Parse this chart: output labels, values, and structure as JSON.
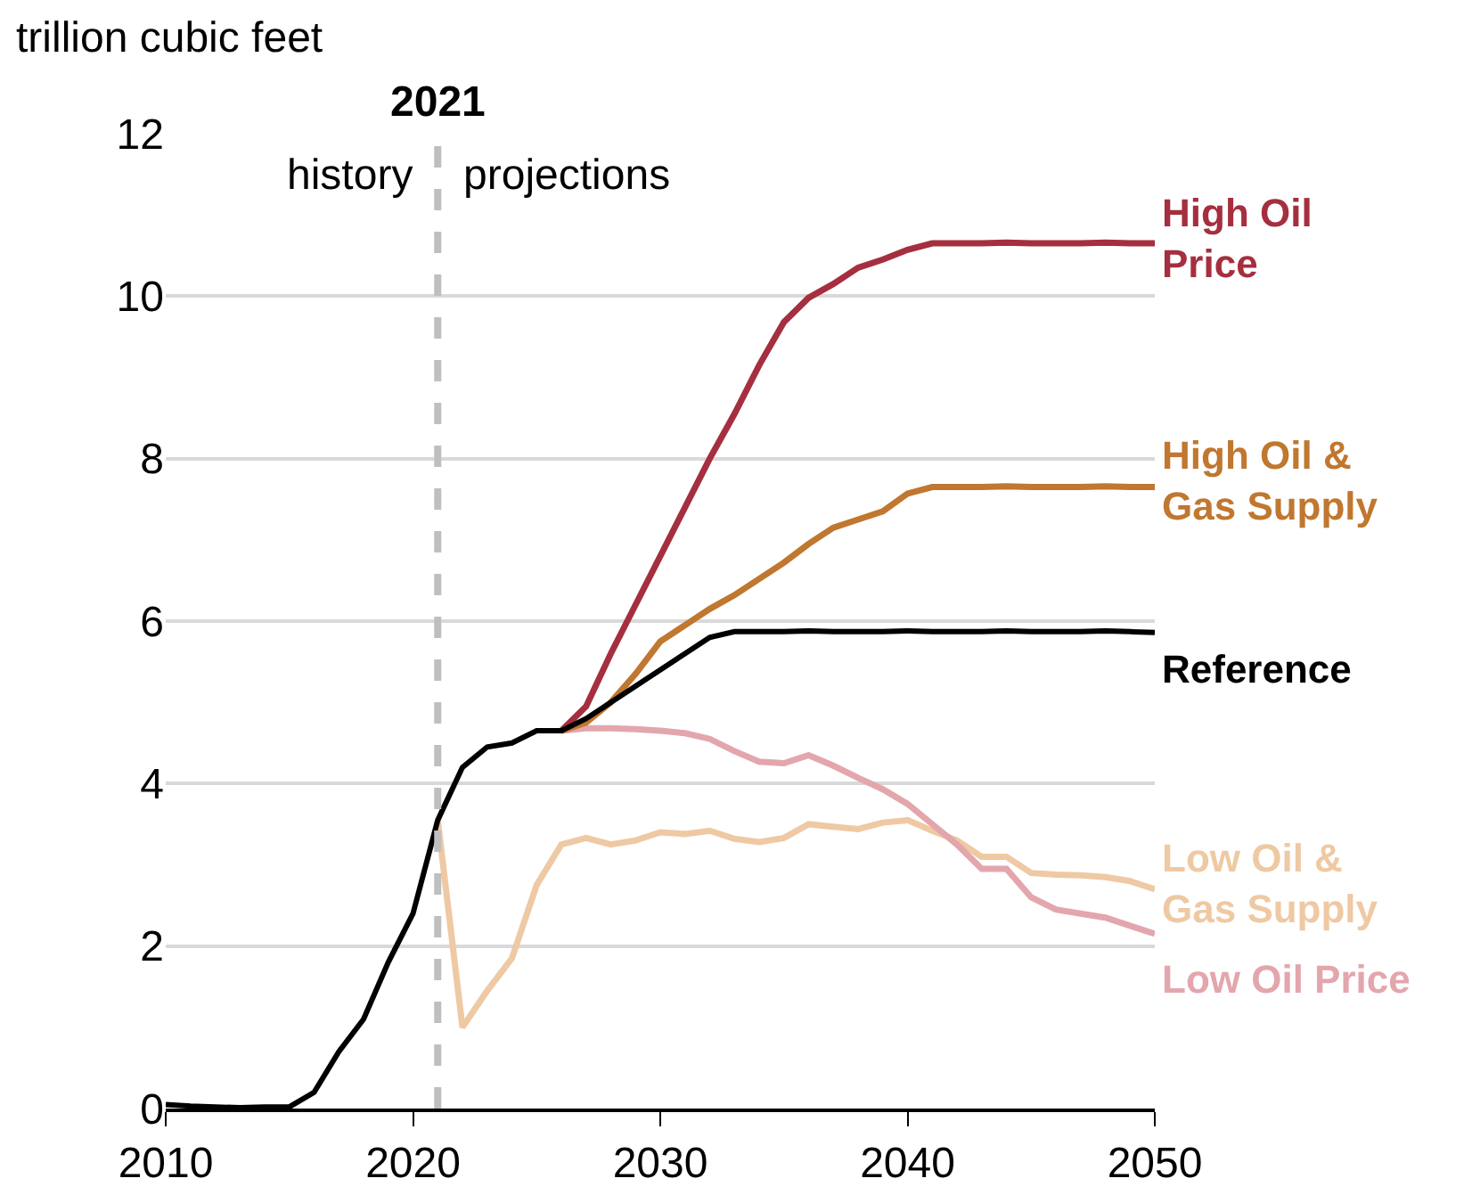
{
  "chart_data": {
    "type": "line",
    "ylabel": "trillion cubic feet",
    "xlim": [
      2010,
      2050
    ],
    "xticks": [
      2010,
      2020,
      2030,
      2040,
      2050
    ],
    "ylim": [
      0,
      12
    ],
    "yticks": [
      0,
      2,
      4,
      6,
      8,
      10,
      12
    ],
    "grid": "y",
    "legend": false,
    "line_style": "solid",
    "marker": "none",
    "ref_lines": [
      {
        "axis": "x",
        "value": 2021,
        "label": "2021",
        "color": "#bfbfbf",
        "line_style": "dashed"
      }
    ],
    "annotations": [
      "history",
      "projections"
    ],
    "series": [
      {
        "name": "Low Oil & Gas Supply",
        "color": "#eec9a3",
        "x": [
          2021,
          2022,
          2023,
          2024,
          2025,
          2026,
          2027,
          2028,
          2029,
          2030,
          2031,
          2032,
          2033,
          2034,
          2035,
          2036,
          2037,
          2038,
          2039,
          2040,
          2041,
          2042,
          2043,
          2044,
          2045,
          2046,
          2047,
          2048,
          2049,
          2050
        ],
        "values": [
          3.55,
          1.0,
          1.45,
          1.85,
          2.75,
          3.25,
          3.33,
          3.25,
          3.3,
          3.4,
          3.38,
          3.42,
          3.32,
          3.28,
          3.33,
          3.5,
          3.47,
          3.44,
          3.52,
          3.55,
          3.42,
          3.3,
          3.1,
          3.1,
          2.9,
          2.88,
          2.87,
          2.85,
          2.8,
          2.7
        ]
      },
      {
        "name": "Low Oil Price",
        "color": "#e3a6ad",
        "x": [
          2026,
          2027,
          2028,
          2029,
          2030,
          2031,
          2032,
          2033,
          2034,
          2035,
          2036,
          2037,
          2038,
          2039,
          2040,
          2041,
          2042,
          2043,
          2044,
          2045,
          2046,
          2047,
          2048,
          2049,
          2050
        ],
        "values": [
          4.65,
          4.68,
          4.68,
          4.67,
          4.65,
          4.62,
          4.55,
          4.4,
          4.27,
          4.25,
          4.35,
          4.22,
          4.07,
          3.93,
          3.75,
          3.5,
          3.25,
          2.95,
          2.95,
          2.6,
          2.45,
          2.4,
          2.35,
          2.25,
          2.15
        ]
      },
      {
        "name": "High Oil & Gas Supply",
        "color": "#c0772f",
        "x": [
          2026,
          2027,
          2028,
          2029,
          2030,
          2031,
          2032,
          2033,
          2034,
          2035,
          2036,
          2037,
          2038,
          2039,
          2040,
          2041,
          2042,
          2043,
          2044,
          2045,
          2046,
          2047,
          2048,
          2049,
          2050
        ],
        "values": [
          4.65,
          4.75,
          5.0,
          5.35,
          5.75,
          5.95,
          6.15,
          6.32,
          6.52,
          6.72,
          6.95,
          7.15,
          7.25,
          7.35,
          7.57,
          7.65,
          7.65,
          7.65,
          7.66,
          7.65,
          7.65,
          7.65,
          7.66,
          7.65,
          7.65
        ]
      },
      {
        "name": "High Oil Price",
        "color": "#a52f3f",
        "x": [
          2026,
          2027,
          2028,
          2029,
          2030,
          2031,
          2032,
          2033,
          2034,
          2035,
          2036,
          2037,
          2038,
          2039,
          2040,
          2041,
          2042,
          2043,
          2044,
          2045,
          2046,
          2047,
          2048,
          2049,
          2050
        ],
        "values": [
          4.65,
          4.95,
          5.6,
          6.2,
          6.8,
          7.4,
          8.0,
          8.55,
          9.15,
          9.68,
          9.98,
          10.15,
          10.35,
          10.45,
          10.57,
          10.65,
          10.65,
          10.65,
          10.66,
          10.65,
          10.65,
          10.65,
          10.66,
          10.65,
          10.65
        ]
      },
      {
        "name": "Reference",
        "color": "#000000",
        "x": [
          2010,
          2011,
          2012,
          2013,
          2014,
          2015,
          2016,
          2017,
          2018,
          2019,
          2020,
          2021,
          2022,
          2023,
          2024,
          2025,
          2026,
          2027,
          2028,
          2029,
          2030,
          2031,
          2032,
          2033,
          2034,
          2035,
          2036,
          2037,
          2038,
          2039,
          2040,
          2041,
          2042,
          2043,
          2044,
          2045,
          2046,
          2047,
          2048,
          2049,
          2050
        ],
        "values": [
          0.05,
          0.03,
          0.02,
          0.01,
          0.02,
          0.02,
          0.2,
          0.7,
          1.1,
          1.8,
          2.4,
          3.55,
          4.2,
          4.45,
          4.5,
          4.65,
          4.65,
          4.8,
          5.0,
          5.2,
          5.4,
          5.6,
          5.8,
          5.87,
          5.87,
          5.87,
          5.88,
          5.87,
          5.87,
          5.87,
          5.88,
          5.87,
          5.87,
          5.87,
          5.88,
          5.87,
          5.87,
          5.87,
          5.88,
          5.87,
          5.86
        ]
      }
    ]
  }
}
